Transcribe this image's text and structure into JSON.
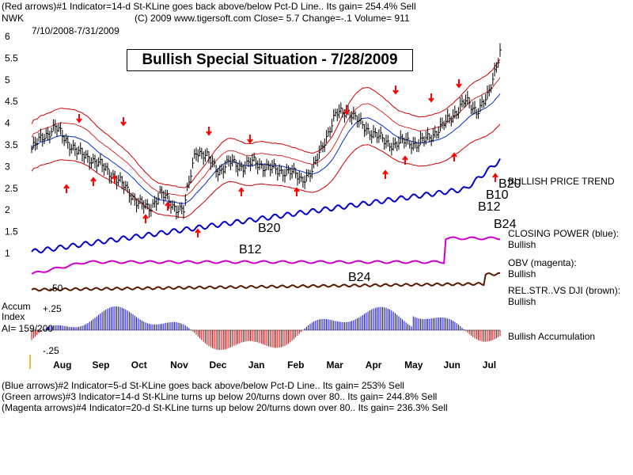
{
  "header": {
    "line1": "(Red arrows)#1 Indicator=14-d St-KLine goes back above/below Pct-D Line.. Its gain= 254.4% Sell",
    "ticker": "NWK",
    "line2": "(C) 2009 www.tigersoft.com    Close=  5.7  Change=-.1 Volume= 911",
    "date_range": "7/10/2008-7/31/2009"
  },
  "banner": "Bullish Special Situation - 7/28/2009",
  "right_labels": {
    "price_trend": "BULLISH PRICE TREND",
    "closing_power": "CLOSING POWER (blue):",
    "closing_power_state": "Bullish",
    "obv": "OBV (magenta):",
    "obv_state": "Bullish",
    "relstr": "REL.STR..VS DJI (brown):",
    "relstr_state": "Bullish",
    "accum": "Bullish Accumulation"
  },
  "left_labels": {
    "accum_title": "Accum",
    "accum_index": "Index",
    "ai": "AI= 159/200",
    "plus25": "+.25",
    "minus25": "-.25",
    "fifty": "-50"
  },
  "annotations": [
    "B20",
    "B12",
    "B24",
    "B20",
    "B10",
    "B12",
    "B24"
  ],
  "footer": {
    "line1": "(Blue arrows)#2 Indicator=5-d St-KLine goes back above/below Pct-D Line.. Its gain= 253% Sell",
    "line2": "(Green arrows)#3 Indicator=14-d St-KLine turns up below 20/turns down over 80.. Its gain= 244.8% Sell",
    "line3": "(Magenta arrows)#4 Indicator=20-d St-KLine turns up below 20/turns down over 80.. Its gain= 236.3% Sell"
  },
  "colors": {
    "price_bars": "#000000",
    "bands": "#cc0000",
    "ma": "#0033cc",
    "closing_power": "#0000cc",
    "obv": "#cc00cc",
    "relstr": "#5a1a00",
    "accum_pos": "#0000cc",
    "accum_neg": "#cc0000",
    "arrows": "#ff0000"
  },
  "chart_data": {
    "type": "line",
    "title": "Bullish Special Situation - 7/28/2009",
    "xlabel": "",
    "ylabel": "",
    "x_ticks": [
      "Aug",
      "Sep",
      "Oct",
      "Nov",
      "Dec",
      "Jan",
      "Feb",
      "Mar",
      "Apr",
      "May",
      "Jun",
      "Jul"
    ],
    "y_ticks": [
      1,
      1.5,
      2,
      2.5,
      3,
      3.5,
      4,
      4.5,
      5,
      5.5,
      6
    ],
    "ylim": [
      0.5,
      6.2
    ],
    "series": [
      {
        "name": "",
        "values": [
          3.4,
          3.7,
          3.9,
          3.6,
          3.3,
          3.2,
          3.0,
          2.8,
          2.5,
          2.2,
          2.0,
          2.4,
          2.1,
          2.0,
          3.4,
          3.2,
          2.9,
          3.1,
          3.0,
          3.1,
          3.0,
          2.9,
          2.9,
          2.7,
          2.9,
          3.6,
          4.2,
          4.3,
          4.0,
          3.8,
          3.6,
          3.5,
          3.6,
          3.5,
          3.7,
          3.9,
          4.2,
          4.5,
          4.3,
          4.6,
          5.7
        ]
      }
    ],
    "grid": false
  }
}
